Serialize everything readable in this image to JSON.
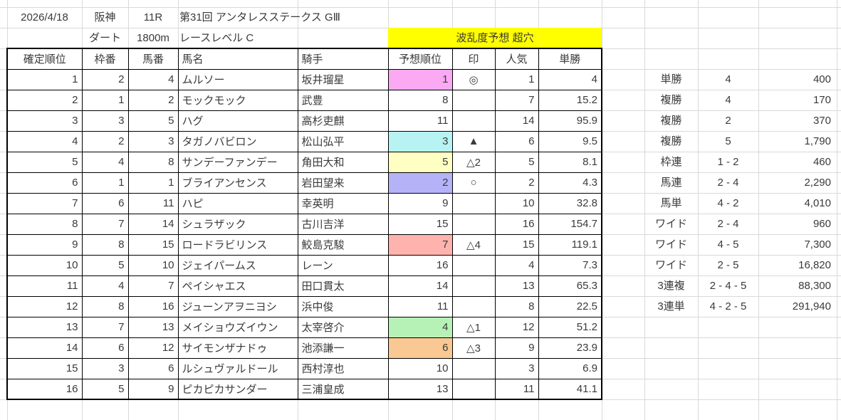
{
  "colors": {
    "banner_bg": "#FFFF00",
    "grid_line": "#d9d9d9",
    "table_border": "#000000",
    "pred_pink": "#FAA9F2",
    "pred_cyan": "#B8F3F3",
    "pred_pale_yellow": "#FFFFC4",
    "pred_purple": "#B5B2F8",
    "pred_salmon": "#FFB3AE",
    "pred_green": "#B6F2B6",
    "pred_orange": "#FAC893"
  },
  "header": {
    "date": "2026/4/18",
    "track": "阪神",
    "race_no": "11R",
    "race_name": "第31回 アンタレスステークス GⅢ",
    "surface": "ダート",
    "distance": "1800m",
    "race_level": "レースレベル C",
    "banner": "波乱度予想 超穴"
  },
  "results_table": {
    "columns": [
      "確定順位",
      "枠番",
      "馬番",
      "馬名",
      "騎手",
      "予想順位",
      "印",
      "人気",
      "単勝"
    ],
    "rows": [
      {
        "finish": 1,
        "frame": 2,
        "number": 4,
        "horse": "ムルソー",
        "jockey": "坂井瑠星",
        "predicted": 1,
        "predicted_bg": "#FAA9F2",
        "mark": "◎",
        "popularity": 1,
        "odds": "4"
      },
      {
        "finish": 2,
        "frame": 1,
        "number": 2,
        "horse": "モックモック",
        "jockey": "武豊",
        "predicted": 8,
        "predicted_bg": "",
        "mark": "",
        "popularity": 7,
        "odds": "15.2"
      },
      {
        "finish": 3,
        "frame": 3,
        "number": 5,
        "horse": "ハグ",
        "jockey": "高杉吏麒",
        "predicted": 11,
        "predicted_bg": "",
        "mark": "",
        "popularity": 14,
        "odds": "95.9"
      },
      {
        "finish": 4,
        "frame": 2,
        "number": 3,
        "horse": "タガノバビロン",
        "jockey": "松山弘平",
        "predicted": 3,
        "predicted_bg": "#B8F3F3",
        "mark": "▲",
        "popularity": 6,
        "odds": "9.5"
      },
      {
        "finish": 5,
        "frame": 4,
        "number": 8,
        "horse": "サンデーファンデー",
        "jockey": "角田大和",
        "predicted": 5,
        "predicted_bg": "#FFFFC4",
        "mark": "△2",
        "popularity": 5,
        "odds": "8.1"
      },
      {
        "finish": 6,
        "frame": 1,
        "number": 1,
        "horse": "ブライアンセンス",
        "jockey": "岩田望来",
        "predicted": 2,
        "predicted_bg": "#B5B2F8",
        "mark": "○",
        "popularity": 2,
        "odds": "4.3"
      },
      {
        "finish": 7,
        "frame": 6,
        "number": 11,
        "horse": "ハピ",
        "jockey": "幸英明",
        "predicted": 9,
        "predicted_bg": "",
        "mark": "",
        "popularity": 10,
        "odds": "32.8"
      },
      {
        "finish": 8,
        "frame": 7,
        "number": 14,
        "horse": "シュラザック",
        "jockey": "古川吉洋",
        "predicted": 15,
        "predicted_bg": "",
        "mark": "",
        "popularity": 16,
        "odds": "154.7"
      },
      {
        "finish": 9,
        "frame": 8,
        "number": 15,
        "horse": "ロードラビリンス",
        "jockey": "鮫島克駿",
        "predicted": 7,
        "predicted_bg": "#FFB3AE",
        "mark": "△4",
        "popularity": 15,
        "odds": "119.1"
      },
      {
        "finish": 10,
        "frame": 5,
        "number": 10,
        "horse": "ジェイパームス",
        "jockey": "レーン",
        "predicted": 16,
        "predicted_bg": "",
        "mark": "",
        "popularity": 4,
        "odds": "7.3"
      },
      {
        "finish": 11,
        "frame": 4,
        "number": 7,
        "horse": "ペイシャエス",
        "jockey": "田口貫太",
        "predicted": 14,
        "predicted_bg": "",
        "mark": "",
        "popularity": 13,
        "odds": "65.3"
      },
      {
        "finish": 12,
        "frame": 8,
        "number": 16,
        "horse": "ジューンアヲニヨシ",
        "jockey": "浜中俊",
        "predicted": 11,
        "predicted_bg": "",
        "mark": "",
        "popularity": 8,
        "odds": "22.5"
      },
      {
        "finish": 13,
        "frame": 7,
        "number": 13,
        "horse": "メイショウズイウン",
        "jockey": "太宰啓介",
        "predicted": 4,
        "predicted_bg": "#B6F2B6",
        "mark": "△1",
        "popularity": 12,
        "odds": "51.2"
      },
      {
        "finish": 14,
        "frame": 6,
        "number": 12,
        "horse": "サイモンザナドゥ",
        "jockey": "池添謙一",
        "predicted": 6,
        "predicted_bg": "#FAC893",
        "mark": "△3",
        "popularity": 9,
        "odds": "23.9"
      },
      {
        "finish": 15,
        "frame": 3,
        "number": 6,
        "horse": "ルシュヴァルドール",
        "jockey": "西村淳也",
        "predicted": 10,
        "predicted_bg": "",
        "mark": "",
        "popularity": 3,
        "odds": "6.9"
      },
      {
        "finish": 16,
        "frame": 5,
        "number": 9,
        "horse": "ピカピカサンダー",
        "jockey": "三浦皇成",
        "predicted": 13,
        "predicted_bg": "",
        "mark": "",
        "popularity": 11,
        "odds": "41.1"
      }
    ]
  },
  "payout_table": {
    "rows": [
      {
        "bet_type": "単勝",
        "combination": "4",
        "payout": "400"
      },
      {
        "bet_type": "複勝",
        "combination": "4",
        "payout": "170"
      },
      {
        "bet_type": "複勝",
        "combination": "2",
        "payout": "370"
      },
      {
        "bet_type": "複勝",
        "combination": "5",
        "payout": "1,790"
      },
      {
        "bet_type": "枠連",
        "combination": "1 - 2",
        "payout": "460"
      },
      {
        "bet_type": "馬連",
        "combination": "2 - 4",
        "payout": "2,290"
      },
      {
        "bet_type": "馬単",
        "combination": "4 - 2",
        "payout": "4,010"
      },
      {
        "bet_type": "ワイド",
        "combination": "2 - 4",
        "payout": "960"
      },
      {
        "bet_type": "ワイド",
        "combination": "4 - 5",
        "payout": "7,300"
      },
      {
        "bet_type": "ワイド",
        "combination": "2 - 5",
        "payout": "16,820"
      },
      {
        "bet_type": "3連複",
        "combination": "2 - 4 - 5",
        "payout": "88,300"
      },
      {
        "bet_type": "3連単",
        "combination": "4 - 2 - 5",
        "payout": "291,940"
      }
    ]
  }
}
